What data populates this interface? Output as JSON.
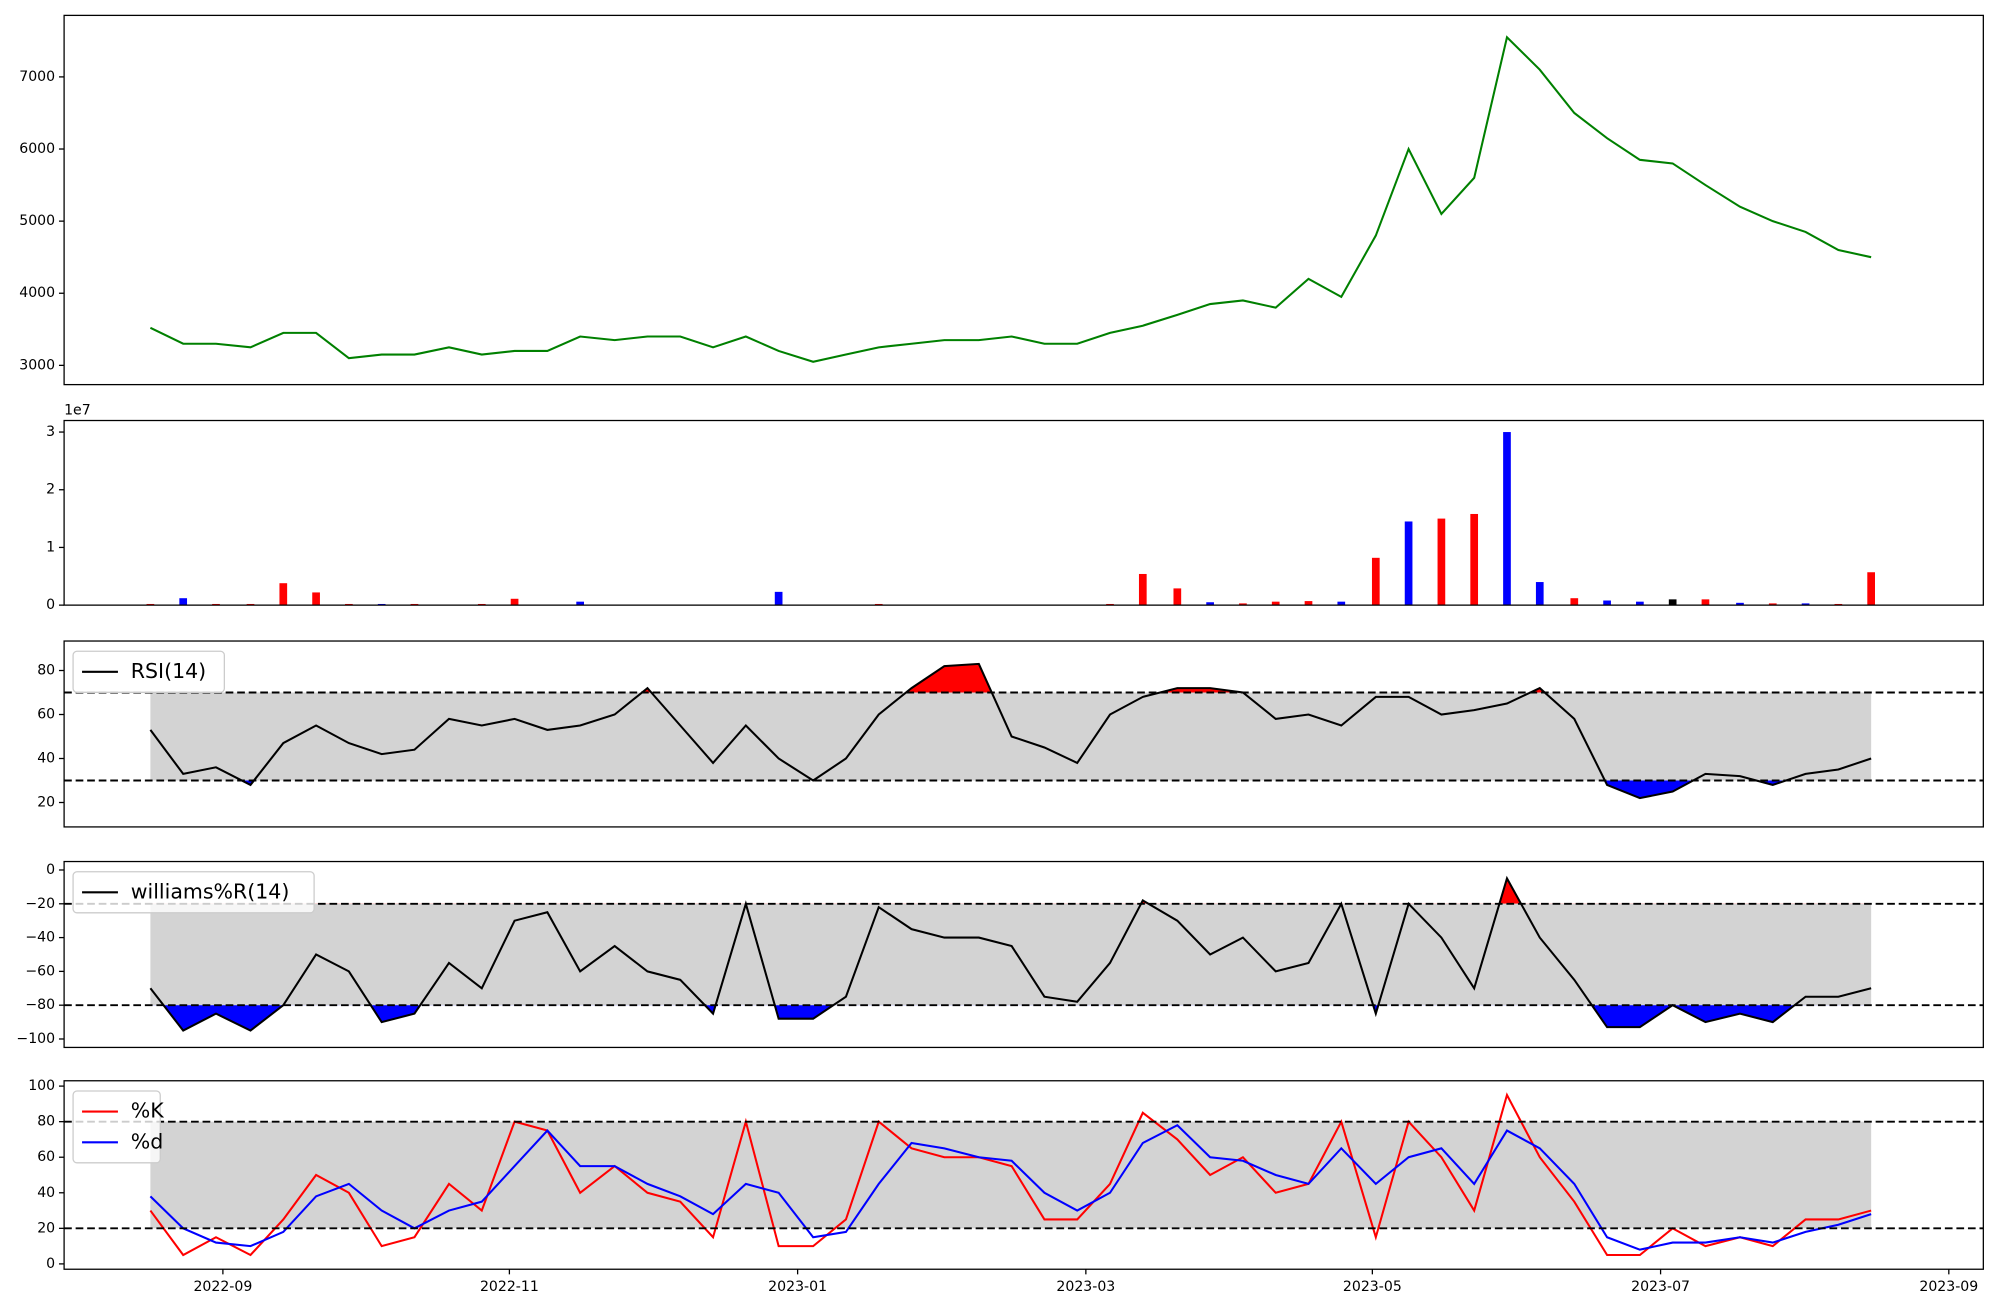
{
  "chart_data": [
    {
      "type": "line",
      "x": [
        2022.625,
        2022.644,
        2022.663,
        2022.683,
        2022.702,
        2022.721,
        2022.74,
        2022.759,
        2022.778,
        2022.798,
        2022.817,
        2022.836,
        2022.855,
        2022.874,
        2022.894,
        2022.913,
        2022.932,
        2022.951,
        2022.97,
        2022.989,
        2023.009,
        2023.028,
        2023.047,
        2023.066,
        2023.085,
        2023.105,
        2023.124,
        2023.143,
        2023.162,
        2023.181,
        2023.2,
        2023.22,
        2023.239,
        2023.258,
        2023.277,
        2023.296,
        2023.315,
        2023.335,
        2023.354,
        2023.373,
        2023.392,
        2023.411,
        2023.43,
        2023.45,
        2023.469,
        2023.488,
        2023.507,
        2023.526,
        2023.546,
        2023.565,
        2023.584,
        2023.603,
        2023.622
      ],
      "values": [
        3520,
        3300,
        3300,
        3250,
        3450,
        3450,
        3100,
        3150,
        3150,
        3250,
        3150,
        3200,
        3200,
        3400,
        3350,
        3400,
        3400,
        3250,
        3400,
        3200,
        3050,
        3150,
        3250,
        3300,
        3350,
        3350,
        3400,
        3300,
        3300,
        3450,
        3550,
        3700,
        3850,
        3900,
        3800,
        4200,
        3950,
        4800,
        6000,
        5100,
        5600,
        7550,
        7100,
        6500,
        6150,
        5850,
        5800,
        5500,
        5200,
        5000,
        4850,
        4600,
        4500
      ],
      "color": "#008000",
      "xlim": [
        2022.575,
        2023.687
      ],
      "ylim": [
        2733,
        7853
      ],
      "yticks": [
        3000,
        4000,
        5000,
        6000,
        7000
      ]
    },
    {
      "type": "bar",
      "x": [
        2022.625,
        2022.644,
        2022.663,
        2022.683,
        2022.702,
        2022.721,
        2022.74,
        2022.759,
        2022.778,
        2022.798,
        2022.817,
        2022.836,
        2022.855,
        2022.874,
        2022.894,
        2022.913,
        2022.932,
        2022.951,
        2022.97,
        2022.989,
        2023.009,
        2023.028,
        2023.047,
        2023.066,
        2023.085,
        2023.105,
        2023.124,
        2023.143,
        2023.162,
        2023.181,
        2023.2,
        2023.22,
        2023.239,
        2023.258,
        2023.277,
        2023.296,
        2023.315,
        2023.335,
        2023.354,
        2023.373,
        2023.392,
        2023.411,
        2023.43,
        2023.45,
        2023.469,
        2023.488,
        2023.507,
        2023.526,
        2023.546,
        2023.565,
        2023.584,
        2023.603,
        2023.622
      ],
      "values": [
        200000,
        1200000,
        200000,
        200000,
        3800000,
        2200000,
        200000,
        200000,
        200000,
        100000,
        200000,
        1100000,
        100000,
        600000,
        100000,
        100000,
        100000,
        100000,
        100000,
        2300000,
        100000,
        100000,
        200000,
        100000,
        100000,
        100000,
        100000,
        100000,
        100000,
        200000,
        5400000,
        2900000,
        500000,
        300000,
        600000,
        700000,
        600000,
        8200000,
        14500000,
        15000000,
        15800000,
        30000000,
        4000000,
        1200000,
        800000,
        600000,
        1000000,
        1000000,
        400000,
        300000,
        300000,
        200000,
        5700000
      ],
      "colors": [
        "#ff0000",
        "#0000ff",
        "#ff0000",
        "#ff0000",
        "#ff0000",
        "#ff0000",
        "#ff0000",
        "#0000ff",
        "#ff0000",
        "#0000ff",
        "#ff0000",
        "#ff0000",
        "#ff0000",
        "#0000ff",
        "#ff0000",
        "#ff0000",
        "#ff0000",
        "#ff0000",
        "#ff0000",
        "#0000ff",
        "#ff0000",
        "#ff0000",
        "#ff0000",
        "#ff0000",
        "#ff0000",
        "#ff0000",
        "#ff0000",
        "#ff0000",
        "#ff0000",
        "#ff0000",
        "#ff0000",
        "#ff0000",
        "#0000ff",
        "#ff0000",
        "#ff0000",
        "#ff0000",
        "#0000ff",
        "#ff0000",
        "#0000ff",
        "#ff0000",
        "#ff0000",
        "#0000ff",
        "#0000ff",
        "#ff0000",
        "#0000ff",
        "#0000ff",
        "#000000",
        "#ff0000",
        "#0000ff",
        "#ff0000",
        "#0000ff",
        "#ff0000",
        "#ff0000"
      ],
      "offset_label": "1e7",
      "xlim": [
        2022.575,
        2023.687
      ],
      "ylim": [
        0,
        32000000
      ],
      "yticks": [
        0,
        {
          "value": 10000000,
          "label": "1"
        },
        {
          "value": 20000000,
          "label": "2"
        },
        {
          "value": 30000000,
          "label": "3"
        }
      ]
    },
    {
      "type": "line",
      "x": [
        2022.625,
        2022.644,
        2022.663,
        2022.683,
        2022.702,
        2022.721,
        2022.74,
        2022.759,
        2022.778,
        2022.798,
        2022.817,
        2022.836,
        2022.855,
        2022.874,
        2022.894,
        2022.913,
        2022.932,
        2022.951,
        2022.97,
        2022.989,
        2023.009,
        2023.028,
        2023.047,
        2023.066,
        2023.085,
        2023.105,
        2023.124,
        2023.143,
        2023.162,
        2023.181,
        2023.2,
        2023.22,
        2023.239,
        2023.258,
        2023.277,
        2023.296,
        2023.315,
        2023.335,
        2023.354,
        2023.373,
        2023.392,
        2023.411,
        2023.43,
        2023.45,
        2023.469,
        2023.488,
        2023.507,
        2023.526,
        2023.546,
        2023.565,
        2023.584,
        2023.603,
        2023.622
      ],
      "series": [
        {
          "name": "RSI(14)",
          "color": "#000000",
          "values": [
            53,
            33,
            36,
            28,
            47,
            55,
            47,
            42,
            44,
            58,
            55,
            58,
            53,
            55,
            60,
            72,
            55,
            38,
            55,
            40,
            30,
            40,
            60,
            72,
            82,
            83,
            50,
            45,
            38,
            60,
            68,
            72,
            72,
            70,
            58,
            60,
            55,
            68,
            68,
            60,
            62,
            65,
            72,
            58,
            28,
            22,
            25,
            33,
            32,
            28,
            33,
            35,
            40
          ]
        }
      ],
      "bands": [
        30,
        70
      ],
      "band_color": "#d3d3d3",
      "above_color": "#ff0000",
      "below_color": "#0000ff",
      "legend": "upper left",
      "xlim": [
        2022.575,
        2023.687
      ],
      "ylim": [
        8.9,
        93.4
      ],
      "yticks": [
        20,
        40,
        60,
        80
      ]
    },
    {
      "type": "line",
      "x": [
        2022.625,
        2022.644,
        2022.663,
        2022.683,
        2022.702,
        2022.721,
        2022.74,
        2022.759,
        2022.778,
        2022.798,
        2022.817,
        2022.836,
        2022.855,
        2022.874,
        2022.894,
        2022.913,
        2022.932,
        2022.951,
        2022.97,
        2022.989,
        2023.009,
        2023.028,
        2023.047,
        2023.066,
        2023.085,
        2023.105,
        2023.124,
        2023.143,
        2023.162,
        2023.181,
        2023.2,
        2023.22,
        2023.239,
        2023.258,
        2023.277,
        2023.296,
        2023.315,
        2023.335,
        2023.354,
        2023.373,
        2023.392,
        2023.411,
        2023.43,
        2023.45,
        2023.469,
        2023.488,
        2023.507,
        2023.526,
        2023.546,
        2023.565,
        2023.584,
        2023.603,
        2023.622
      ],
      "series": [
        {
          "name": "williams%R(14)",
          "color": "#000000",
          "values": [
            -70,
            -95,
            -85,
            -95,
            -80,
            -50,
            -60,
            -90,
            -85,
            -55,
            -70,
            -30,
            -25,
            -60,
            -45,
            -60,
            -65,
            -85,
            -20,
            -88,
            -88,
            -75,
            -22,
            -35,
            -40,
            -40,
            -45,
            -75,
            -78,
            -55,
            -18,
            -30,
            -50,
            -40,
            -60,
            -55,
            -20,
            -85,
            -20,
            -40,
            -70,
            -5,
            -40,
            -65,
            -93,
            -93,
            -80,
            -90,
            -85,
            -90,
            -75,
            -75,
            -70
          ]
        }
      ],
      "bands": [
        -80,
        -20
      ],
      "band_color": "#d3d3d3",
      "above_color": "#ff0000",
      "below_color": "#0000ff",
      "legend": "upper left",
      "xlim": [
        2022.575,
        2023.687
      ],
      "ylim": [
        -105,
        5
      ],
      "yticks": [
        {
          "value": -100,
          "label": "−100"
        },
        {
          "value": -80,
          "label": "−80"
        },
        {
          "value": -60,
          "label": "−60"
        },
        {
          "value": -40,
          "label": "−40"
        },
        {
          "value": -20,
          "label": "−20"
        },
        0
      ]
    },
    {
      "type": "line",
      "x": [
        2022.625,
        2022.644,
        2022.663,
        2022.683,
        2022.702,
        2022.721,
        2022.74,
        2022.759,
        2022.778,
        2022.798,
        2022.817,
        2022.836,
        2022.855,
        2022.874,
        2022.894,
        2022.913,
        2022.932,
        2022.951,
        2022.97,
        2022.989,
        2023.009,
        2023.028,
        2023.047,
        2023.066,
        2023.085,
        2023.105,
        2023.124,
        2023.143,
        2023.162,
        2023.181,
        2023.2,
        2023.22,
        2023.239,
        2023.258,
        2023.277,
        2023.296,
        2023.315,
        2023.335,
        2023.354,
        2023.373,
        2023.392,
        2023.411,
        2023.43,
        2023.45,
        2023.469,
        2023.488,
        2023.507,
        2023.526,
        2023.546,
        2023.565,
        2023.584,
        2023.603,
        2023.622
      ],
      "series": [
        {
          "name": "%K",
          "color": "#ff0000",
          "values": [
            30,
            5,
            15,
            5,
            25,
            50,
            40,
            10,
            15,
            45,
            30,
            80,
            75,
            40,
            55,
            40,
            35,
            15,
            80,
            10,
            10,
            25,
            80,
            65,
            60,
            60,
            55,
            25,
            25,
            45,
            85,
            70,
            50,
            60,
            40,
            45,
            80,
            15,
            80,
            60,
            30,
            95,
            60,
            35,
            5,
            5,
            20,
            10,
            15,
            10,
            25,
            25,
            30
          ]
        },
        {
          "name": "%d",
          "color": "#0000ff",
          "values": [
            38,
            20,
            12,
            10,
            18,
            38,
            45,
            30,
            20,
            30,
            35,
            55,
            75,
            55,
            55,
            45,
            38,
            28,
            45,
            40,
            15,
            18,
            45,
            68,
            65,
            60,
            58,
            40,
            30,
            40,
            68,
            78,
            60,
            58,
            50,
            45,
            65,
            45,
            60,
            65,
            45,
            75,
            65,
            45,
            15,
            8,
            12,
            12,
            15,
            12,
            18,
            22,
            28
          ]
        }
      ],
      "bands": [
        20,
        80
      ],
      "band_color": "#d3d3d3",
      "legend": "upper left",
      "xlim": [
        2022.575,
        2023.687
      ],
      "ylim": [
        -3,
        103
      ],
      "yticks": [
        0,
        20,
        40,
        60,
        80,
        100
      ],
      "xticks": [
        {
          "value": 2022.667,
          "label": "2022-09"
        },
        {
          "value": 2022.833,
          "label": "2022-11"
        },
        {
          "value": 2023.0,
          "label": "2023-01"
        },
        {
          "value": 2023.167,
          "label": "2023-03"
        },
        {
          "value": 2023.333,
          "label": "2023-05"
        },
        {
          "value": 2023.5,
          "label": "2023-07"
        },
        {
          "value": 2023.667,
          "label": "2023-09"
        }
      ]
    }
  ]
}
